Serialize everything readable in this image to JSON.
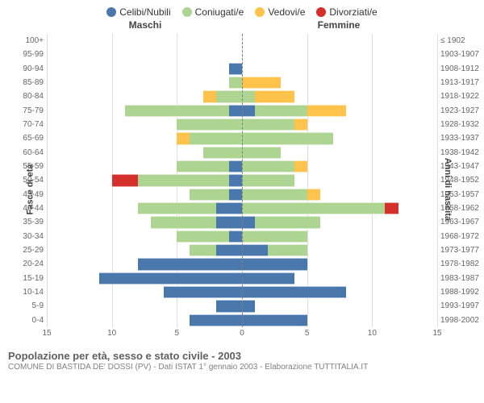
{
  "legend": [
    {
      "label": "Celibi/Nubili",
      "color": "#4a78ad"
    },
    {
      "label": "Coniugati/e",
      "color": "#aed492"
    },
    {
      "label": "Vedovi/e",
      "color": "#ffc24b"
    },
    {
      "label": "Divorziati/e",
      "color": "#d42f2a"
    }
  ],
  "headers": {
    "male": "Maschi",
    "female": "Femmine"
  },
  "axis_left_label": "Fasce di età",
  "axis_right_label": "Anni di nascita",
  "x_max": 15,
  "x_ticks": [
    15,
    10,
    5,
    0,
    5,
    10,
    15
  ],
  "colors": {
    "celibi": "#4a78ad",
    "coniugati": "#aed492",
    "vedovi": "#ffc24b",
    "divorziati": "#d42f2a",
    "grid": "#dedede",
    "bg": "#ffffff"
  },
  "rows": [
    {
      "age": "100+",
      "birth": "≤ 1902",
      "m": {
        "c": 0,
        "co": 0,
        "v": 0,
        "d": 0
      },
      "f": {
        "c": 0,
        "co": 0,
        "v": 0,
        "d": 0
      }
    },
    {
      "age": "95-99",
      "birth": "1903-1907",
      "m": {
        "c": 0,
        "co": 0,
        "v": 0,
        "d": 0
      },
      "f": {
        "c": 0,
        "co": 0,
        "v": 0,
        "d": 0
      }
    },
    {
      "age": "90-94",
      "birth": "1908-1912",
      "m": {
        "c": 1,
        "co": 0,
        "v": 0,
        "d": 0
      },
      "f": {
        "c": 0,
        "co": 0,
        "v": 0,
        "d": 0
      }
    },
    {
      "age": "85-89",
      "birth": "1913-1917",
      "m": {
        "c": 0,
        "co": 1,
        "v": 0,
        "d": 0
      },
      "f": {
        "c": 0,
        "co": 0,
        "v": 3,
        "d": 0
      }
    },
    {
      "age": "80-84",
      "birth": "1918-1922",
      "m": {
        "c": 0,
        "co": 2,
        "v": 1,
        "d": 0
      },
      "f": {
        "c": 0,
        "co": 1,
        "v": 3,
        "d": 0
      }
    },
    {
      "age": "75-79",
      "birth": "1923-1927",
      "m": {
        "c": 1,
        "co": 8,
        "v": 0,
        "d": 0
      },
      "f": {
        "c": 1,
        "co": 4,
        "v": 3,
        "d": 0
      }
    },
    {
      "age": "70-74",
      "birth": "1928-1932",
      "m": {
        "c": 0,
        "co": 5,
        "v": 0,
        "d": 0
      },
      "f": {
        "c": 0,
        "co": 4,
        "v": 1,
        "d": 0
      }
    },
    {
      "age": "65-69",
      "birth": "1933-1937",
      "m": {
        "c": 0,
        "co": 4,
        "v": 1,
        "d": 0
      },
      "f": {
        "c": 0,
        "co": 7,
        "v": 0,
        "d": 0
      }
    },
    {
      "age": "60-64",
      "birth": "1938-1942",
      "m": {
        "c": 0,
        "co": 3,
        "v": 0,
        "d": 0
      },
      "f": {
        "c": 0,
        "co": 3,
        "v": 0,
        "d": 0
      }
    },
    {
      "age": "55-59",
      "birth": "1943-1947",
      "m": {
        "c": 1,
        "co": 4,
        "v": 0,
        "d": 0
      },
      "f": {
        "c": 0,
        "co": 4,
        "v": 1,
        "d": 0
      }
    },
    {
      "age": "50-54",
      "birth": "1948-1952",
      "m": {
        "c": 1,
        "co": 7,
        "v": 0,
        "d": 2
      },
      "f": {
        "c": 0,
        "co": 4,
        "v": 0,
        "d": 0
      }
    },
    {
      "age": "45-49",
      "birth": "1953-1957",
      "m": {
        "c": 1,
        "co": 3,
        "v": 0,
        "d": 0
      },
      "f": {
        "c": 0,
        "co": 5,
        "v": 1,
        "d": 0
      }
    },
    {
      "age": "40-44",
      "birth": "1958-1962",
      "m": {
        "c": 2,
        "co": 6,
        "v": 0,
        "d": 0
      },
      "f": {
        "c": 0,
        "co": 11,
        "v": 0,
        "d": 1
      }
    },
    {
      "age": "35-39",
      "birth": "1963-1967",
      "m": {
        "c": 2,
        "co": 5,
        "v": 0,
        "d": 0
      },
      "f": {
        "c": 1,
        "co": 5,
        "v": 0,
        "d": 0
      }
    },
    {
      "age": "30-34",
      "birth": "1968-1972",
      "m": {
        "c": 1,
        "co": 4,
        "v": 0,
        "d": 0
      },
      "f": {
        "c": 0,
        "co": 5,
        "v": 0,
        "d": 0
      }
    },
    {
      "age": "25-29",
      "birth": "1973-1977",
      "m": {
        "c": 2,
        "co": 2,
        "v": 0,
        "d": 0
      },
      "f": {
        "c": 2,
        "co": 3,
        "v": 0,
        "d": 0
      }
    },
    {
      "age": "20-24",
      "birth": "1978-1982",
      "m": {
        "c": 8,
        "co": 0,
        "v": 0,
        "d": 0
      },
      "f": {
        "c": 5,
        "co": 0,
        "v": 0,
        "d": 0
      }
    },
    {
      "age": "15-19",
      "birth": "1983-1987",
      "m": {
        "c": 11,
        "co": 0,
        "v": 0,
        "d": 0
      },
      "f": {
        "c": 4,
        "co": 0,
        "v": 0,
        "d": 0
      }
    },
    {
      "age": "10-14",
      "birth": "1988-1992",
      "m": {
        "c": 6,
        "co": 0,
        "v": 0,
        "d": 0
      },
      "f": {
        "c": 8,
        "co": 0,
        "v": 0,
        "d": 0
      }
    },
    {
      "age": "5-9",
      "birth": "1993-1997",
      "m": {
        "c": 2,
        "co": 0,
        "v": 0,
        "d": 0
      },
      "f": {
        "c": 1,
        "co": 0,
        "v": 0,
        "d": 0
      }
    },
    {
      "age": "0-4",
      "birth": "1998-2002",
      "m": {
        "c": 4,
        "co": 0,
        "v": 0,
        "d": 0
      },
      "f": {
        "c": 5,
        "co": 0,
        "v": 0,
        "d": 0
      }
    }
  ],
  "footer": {
    "title": "Popolazione per età, sesso e stato civile - 2003",
    "sub": "COMUNE DI BASTIDA DE' DOSSI (PV) - Dati ISTAT 1° gennaio 2003 - Elaborazione TUTTITALIA.IT"
  }
}
